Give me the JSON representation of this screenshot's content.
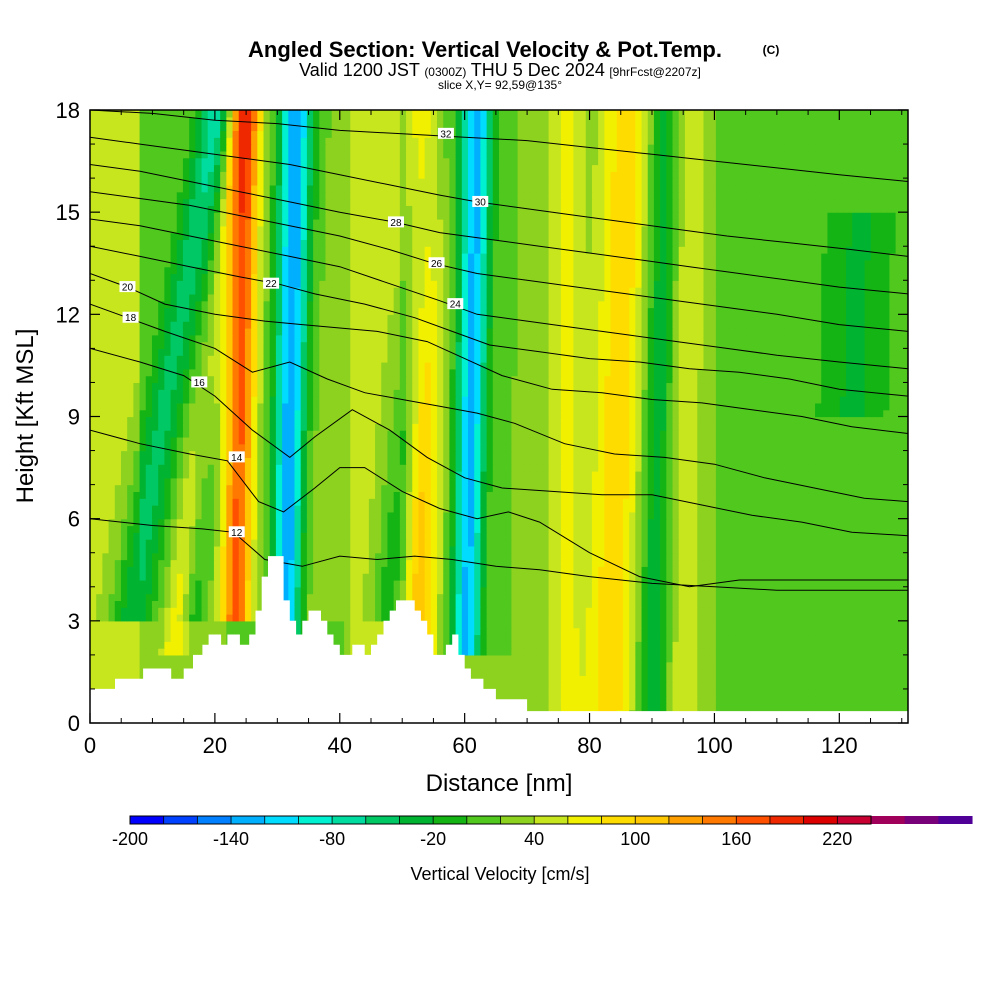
{
  "chart_data": {
    "type": "heatmap",
    "title": {
      "main": "Angled Section: Vertical Velocity & Pot.Temp.",
      "copyright": "(C)",
      "valid_prefix": "Valid 1200 JST",
      "valid_utc": "(0300Z)",
      "valid_date": "THU 5 Dec 2024",
      "forecast": "[9hrFcst@2207z]",
      "slice": "slice X,Y= 92,59@135°"
    },
    "xlabel": "Distance [nm]",
    "ylabel": "Height [Kft MSL]",
    "xlim": [
      0,
      131
    ],
    "ylim": [
      0,
      18
    ],
    "xticks": [
      0,
      20,
      40,
      60,
      80,
      100,
      120
    ],
    "yticks": [
      0,
      3,
      6,
      9,
      12,
      15,
      18
    ],
    "colorbar": {
      "label": "Vertical Velocity [cm/s]",
      "range": [
        -200,
        240
      ],
      "step": 20,
      "tick_labels": [
        -200,
        -140,
        -80,
        -20,
        40,
        100,
        160,
        220
      ],
      "colors": [
        "#0000ff",
        "#0040ff",
        "#0080ff",
        "#00b0ff",
        "#00dcff",
        "#00f0d2",
        "#00dca0",
        "#00c864",
        "#00b432",
        "#14b414",
        "#50c81e",
        "#8cd21e",
        "#c8e61e",
        "#f0f000",
        "#ffdc00",
        "#ffc800",
        "#ffa000",
        "#ff7800",
        "#ff5000",
        "#f02800",
        "#dc0000",
        "#c80032",
        "#a0005a",
        "#780078",
        "#500096"
      ]
    },
    "terrain_kft": [
      [
        0,
        1.0
      ],
      [
        4,
        1.0
      ],
      [
        4,
        1.3
      ],
      [
        8.5,
        1.3
      ],
      [
        8.5,
        1.6
      ],
      [
        13,
        1.6
      ],
      [
        13,
        1.3
      ],
      [
        15,
        1.3
      ],
      [
        15,
        1.6
      ],
      [
        16.5,
        1.6
      ],
      [
        16.5,
        2.0
      ],
      [
        18,
        2.0
      ],
      [
        18,
        2.3
      ],
      [
        19,
        2.3
      ],
      [
        19,
        2.6
      ],
      [
        21,
        2.6
      ],
      [
        21,
        2.3
      ],
      [
        22,
        2.3
      ],
      [
        22,
        2.6
      ],
      [
        24,
        2.6
      ],
      [
        24,
        2.3
      ],
      [
        25.5,
        2.3
      ],
      [
        25.5,
        2.6
      ],
      [
        26.5,
        2.6
      ],
      [
        26.5,
        3.3
      ],
      [
        27.5,
        3.3
      ],
      [
        27.5,
        4.3
      ],
      [
        28.5,
        4.3
      ],
      [
        28.5,
        4.9
      ],
      [
        31,
        4.9
      ],
      [
        31,
        3.6
      ],
      [
        32,
        3.6
      ],
      [
        32,
        3.0
      ],
      [
        33,
        3.0
      ],
      [
        33,
        2.6
      ],
      [
        34,
        2.6
      ],
      [
        34,
        3.0
      ],
      [
        35,
        3.0
      ],
      [
        35,
        3.3
      ],
      [
        37,
        3.3
      ],
      [
        37,
        3.0
      ],
      [
        38,
        3.0
      ],
      [
        38,
        2.6
      ],
      [
        39,
        2.6
      ],
      [
        39,
        2.3
      ],
      [
        40,
        2.3
      ],
      [
        40,
        2.0
      ],
      [
        42,
        2.0
      ],
      [
        42,
        2.3
      ],
      [
        44,
        2.3
      ],
      [
        44,
        2.0
      ],
      [
        45,
        2.0
      ],
      [
        45,
        2.3
      ],
      [
        46,
        2.3
      ],
      [
        46,
        2.6
      ],
      [
        47,
        2.6
      ],
      [
        47,
        3.0
      ],
      [
        48,
        3.0
      ],
      [
        48,
        3.3
      ],
      [
        49,
        3.3
      ],
      [
        49,
        3.6
      ],
      [
        52,
        3.6
      ],
      [
        52,
        3.3
      ],
      [
        53,
        3.3
      ],
      [
        53,
        3.0
      ],
      [
        54,
        3.0
      ],
      [
        54,
        2.6
      ],
      [
        55,
        2.6
      ],
      [
        55,
        2.0
      ],
      [
        57,
        2.0
      ],
      [
        57,
        2.3
      ],
      [
        58,
        2.3
      ],
      [
        58,
        2.6
      ],
      [
        59,
        2.6
      ],
      [
        59,
        2.0
      ],
      [
        60,
        2.0
      ],
      [
        60,
        1.6
      ],
      [
        61,
        1.6
      ],
      [
        61,
        1.3
      ],
      [
        63,
        1.3
      ],
      [
        63,
        1.0
      ],
      [
        65,
        1.0
      ],
      [
        65,
        0.7
      ],
      [
        70,
        0.7
      ],
      [
        70,
        0.35
      ],
      [
        131,
        0.35
      ]
    ],
    "vv_features": [
      {
        "x0": 3.5,
        "x1": 20,
        "w0": 3.5,
        "w1": 3.0,
        "ymin": 3,
        "ymax": 18,
        "v": -60
      },
      {
        "x0": 12,
        "x1": 24,
        "w0": 2.0,
        "w1": 2.5,
        "ymin": 2,
        "ymax": 18,
        "v": 60
      },
      {
        "x0": 15.5,
        "x1": 21,
        "w0": 2.0,
        "w1": 2.5,
        "ymin": 3,
        "ymax": 18,
        "v": -30
      },
      {
        "x0": 23,
        "x1": 25,
        "w0": 2.4,
        "w1": 2.4,
        "ymin": 3,
        "ymax": 18,
        "v": 150
      },
      {
        "x0": 31,
        "x1": 33,
        "w0": 2.2,
        "w1": 2.6,
        "ymin": 1,
        "ymax": 18,
        "v": -150
      },
      {
        "x0": 36,
        "x1": 44,
        "w0": 4.0,
        "w1": 4.0,
        "ymin": 3,
        "ymax": 18,
        "v": 20
      },
      {
        "x0": 47,
        "x1": 55,
        "w0": 3.0,
        "w1": 3.0,
        "ymin": 3,
        "ymax": 18,
        "v": -60
      },
      {
        "x0": 52,
        "x1": 54,
        "w0": 3.0,
        "w1": 3.0,
        "ymin": 2,
        "ymax": 18,
        "v": 110
      },
      {
        "x0": 60,
        "x1": 62,
        "w0": 2.2,
        "w1": 2.5,
        "ymin": 2,
        "ymax": 18,
        "v": -140
      },
      {
        "x0": 76,
        "x1": 76,
        "w0": 3.0,
        "w1": 3.0,
        "ymin": 0,
        "ymax": 18,
        "v": 50
      },
      {
        "x0": 83,
        "x1": 86,
        "w0": 4.0,
        "w1": 4.0,
        "ymin": 0,
        "ymax": 18,
        "v": 80
      },
      {
        "x0": 90,
        "x1": 92,
        "w0": 2.5,
        "w1": 2.5,
        "ymin": 0,
        "ymax": 18,
        "v": -50
      },
      {
        "x0": 95,
        "x1": 96,
        "w0": 3.0,
        "w1": 3.0,
        "ymin": 0,
        "ymax": 18,
        "v": 40
      },
      {
        "x0": 120,
        "x1": 124,
        "w0": 5.0,
        "w1": 5.0,
        "ymin": 9,
        "ymax": 15,
        "v": -30
      }
    ],
    "isentropes": [
      {
        "theta": 12,
        "label_at": [
          23.5,
          5.6
        ],
        "points": [
          [
            0,
            6.0
          ],
          [
            10,
            5.8
          ],
          [
            18,
            5.7
          ],
          [
            23,
            5.6
          ],
          [
            28,
            4.8
          ],
          [
            34,
            4.6
          ],
          [
            40,
            4.9
          ],
          [
            46,
            4.8
          ],
          [
            52,
            4.9
          ],
          [
            58,
            4.8
          ],
          [
            65,
            4.6
          ],
          [
            72,
            4.5
          ],
          [
            80,
            4.3
          ],
          [
            90,
            4.1
          ],
          [
            100,
            4.0
          ],
          [
            110,
            3.9
          ],
          [
            120,
            3.9
          ],
          [
            131,
            3.9
          ]
        ]
      },
      {
        "theta": 14,
        "label_at": [
          23.5,
          7.8
        ],
        "points": [
          [
            0,
            8.6
          ],
          [
            8,
            8.2
          ],
          [
            16,
            7.9
          ],
          [
            22,
            7.7
          ],
          [
            27,
            6.5
          ],
          [
            31,
            6.2
          ],
          [
            36,
            6.9
          ],
          [
            40,
            7.5
          ],
          [
            44,
            7.5
          ],
          [
            50,
            6.8
          ],
          [
            56,
            6.3
          ],
          [
            62,
            6.0
          ],
          [
            67,
            6.2
          ],
          [
            72,
            5.9
          ],
          [
            80,
            5.0
          ],
          [
            88,
            4.3
          ],
          [
            96,
            4.0
          ],
          [
            104,
            4.2
          ],
          [
            112,
            4.2
          ],
          [
            120,
            4.2
          ],
          [
            131,
            4.2
          ]
        ]
      },
      {
        "theta": 16,
        "label_at": [
          17.5,
          10.0
        ],
        "points": [
          [
            0,
            11.0
          ],
          [
            8,
            10.6
          ],
          [
            15,
            10.2
          ],
          [
            20,
            9.6
          ],
          [
            26,
            8.6
          ],
          [
            32,
            7.8
          ],
          [
            36,
            8.4
          ],
          [
            42,
            9.2
          ],
          [
            48,
            8.6
          ],
          [
            54,
            7.8
          ],
          [
            60,
            7.2
          ],
          [
            66,
            6.9
          ],
          [
            74,
            6.8
          ],
          [
            82,
            6.7
          ],
          [
            90,
            6.7
          ],
          [
            98,
            6.4
          ],
          [
            106,
            6.1
          ],
          [
            114,
            5.9
          ],
          [
            122,
            5.6
          ],
          [
            131,
            5.5
          ]
        ]
      },
      {
        "theta": 18,
        "label_at": [
          6.5,
          11.9
        ],
        "points": [
          [
            0,
            12.3
          ],
          [
            6,
            11.9
          ],
          [
            12,
            11.5
          ],
          [
            20,
            11.0
          ],
          [
            26,
            10.3
          ],
          [
            32,
            10.6
          ],
          [
            38,
            10.1
          ],
          [
            44,
            9.7
          ],
          [
            50,
            9.5
          ],
          [
            56,
            9.3
          ],
          [
            62,
            9.1
          ],
          [
            68,
            8.8
          ],
          [
            76,
            8.2
          ],
          [
            84,
            7.9
          ],
          [
            92,
            7.8
          ],
          [
            100,
            7.6
          ],
          [
            108,
            7.2
          ],
          [
            116,
            6.9
          ],
          [
            124,
            6.6
          ],
          [
            131,
            6.5
          ]
        ]
      },
      {
        "theta": 20,
        "label_at": [
          6.0,
          12.8
        ],
        "points": [
          [
            0,
            13.2
          ],
          [
            6,
            12.8
          ],
          [
            12,
            12.3
          ],
          [
            20,
            12.0
          ],
          [
            28,
            11.8
          ],
          [
            34,
            11.7
          ],
          [
            40,
            11.6
          ],
          [
            46,
            11.5
          ],
          [
            54,
            11.2
          ],
          [
            60,
            10.7
          ],
          [
            66,
            10.2
          ],
          [
            74,
            9.8
          ],
          [
            82,
            9.7
          ],
          [
            90,
            9.5
          ],
          [
            98,
            9.4
          ],
          [
            106,
            9.2
          ],
          [
            114,
            9.0
          ],
          [
            122,
            8.7
          ],
          [
            131,
            8.5
          ]
        ]
      },
      {
        "theta": 22,
        "label_at": [
          29,
          12.9
        ],
        "points": [
          [
            0,
            14.0
          ],
          [
            8,
            13.7
          ],
          [
            16,
            13.4
          ],
          [
            24,
            13.1
          ],
          [
            30,
            12.9
          ],
          [
            36,
            12.6
          ],
          [
            44,
            12.3
          ],
          [
            52,
            11.9
          ],
          [
            58,
            11.5
          ],
          [
            64,
            11.1
          ],
          [
            72,
            10.9
          ],
          [
            80,
            10.7
          ],
          [
            88,
            10.6
          ],
          [
            96,
            10.4
          ],
          [
            104,
            10.3
          ],
          [
            112,
            10.1
          ],
          [
            120,
            9.8
          ],
          [
            131,
            9.6
          ]
        ]
      },
      {
        "theta": 24,
        "label_at": [
          58.5,
          12.3
        ],
        "points": [
          [
            0,
            14.8
          ],
          [
            8,
            14.6
          ],
          [
            16,
            14.3
          ],
          [
            24,
            14.0
          ],
          [
            32,
            13.7
          ],
          [
            40,
            13.4
          ],
          [
            48,
            12.9
          ],
          [
            56,
            12.4
          ],
          [
            62,
            12.0
          ],
          [
            70,
            11.8
          ],
          [
            78,
            11.6
          ],
          [
            86,
            11.4
          ],
          [
            94,
            11.2
          ],
          [
            102,
            11.0
          ],
          [
            110,
            10.8
          ],
          [
            120,
            10.6
          ],
          [
            131,
            10.4
          ]
        ]
      },
      {
        "theta": 26,
        "label_at": [
          55.5,
          13.5
        ],
        "points": [
          [
            0,
            15.6
          ],
          [
            8,
            15.4
          ],
          [
            16,
            15.2
          ],
          [
            24,
            14.9
          ],
          [
            32,
            14.6
          ],
          [
            40,
            14.3
          ],
          [
            48,
            13.9
          ],
          [
            55,
            13.5
          ],
          [
            62,
            13.2
          ],
          [
            70,
            13.0
          ],
          [
            78,
            12.8
          ],
          [
            86,
            12.6
          ],
          [
            94,
            12.4
          ],
          [
            102,
            12.2
          ],
          [
            110,
            12.0
          ],
          [
            120,
            11.7
          ],
          [
            131,
            11.5
          ]
        ]
      },
      {
        "theta": 28,
        "label_at": [
          49,
          14.7
        ],
        "points": [
          [
            0,
            16.4
          ],
          [
            8,
            16.2
          ],
          [
            16,
            15.9
          ],
          [
            24,
            15.6
          ],
          [
            32,
            15.3
          ],
          [
            40,
            15.0
          ],
          [
            49,
            14.7
          ],
          [
            56,
            14.4
          ],
          [
            64,
            14.2
          ],
          [
            72,
            14.0
          ],
          [
            80,
            13.8
          ],
          [
            88,
            13.6
          ],
          [
            96,
            13.4
          ],
          [
            104,
            13.2
          ],
          [
            112,
            13.0
          ],
          [
            120,
            12.8
          ],
          [
            131,
            12.6
          ]
        ]
      },
      {
        "theta": 30,
        "label_at": [
          62.5,
          15.3
        ],
        "points": [
          [
            0,
            17.2
          ],
          [
            8,
            17.0
          ],
          [
            16,
            16.8
          ],
          [
            24,
            16.6
          ],
          [
            32,
            16.4
          ],
          [
            40,
            16.1
          ],
          [
            48,
            15.8
          ],
          [
            56,
            15.5
          ],
          [
            62,
            15.3
          ],
          [
            70,
            15.1
          ],
          [
            78,
            14.9
          ],
          [
            86,
            14.7
          ],
          [
            94,
            14.5
          ],
          [
            102,
            14.3
          ],
          [
            112,
            14.1
          ],
          [
            122,
            13.9
          ],
          [
            131,
            13.7
          ]
        ]
      },
      {
        "theta": 32,
        "label_at": [
          57,
          17.3
        ],
        "points": [
          [
            0,
            18.0
          ],
          [
            10,
            17.9
          ],
          [
            20,
            17.7
          ],
          [
            30,
            17.6
          ],
          [
            40,
            17.4
          ],
          [
            50,
            17.3
          ],
          [
            60,
            17.2
          ],
          [
            70,
            17.1
          ],
          [
            80,
            16.9
          ],
          [
            90,
            16.7
          ],
          [
            100,
            16.5
          ],
          [
            110,
            16.3
          ],
          [
            120,
            16.1
          ],
          [
            131,
            15.9
          ]
        ]
      }
    ]
  }
}
